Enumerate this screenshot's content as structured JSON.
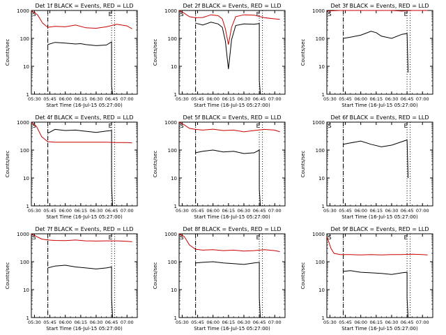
{
  "colors": {
    "events": "#000000",
    "lld": "#cc0000",
    "axes": "#000000",
    "background": "#ffffff"
  },
  "x_ticks": [
    "05:30",
    "05:45",
    "06:00",
    "06:15",
    "06:30",
    "06:45",
    "07:00"
  ],
  "x_ticks_alt": [
    "05:30",
    "05:45",
    "06:00",
    "06:15",
    "06:30",
    "06:45",
    "07:00"
  ],
  "y_ticks": [
    "1",
    "10",
    "100",
    "1000"
  ],
  "marker_s": "S",
  "marker_e": "E",
  "chart_data": [
    {
      "id": "det1f",
      "type": "line",
      "title": "Det 1f BLACK = Events, RED = LLD",
      "xlabel": "",
      "ylabel": "Counts/sec",
      "ylim": [
        1,
        1000
      ],
      "xlim": [
        "05:27",
        "07:10"
      ],
      "yscale": "log",
      "legend": "none",
      "start_line": "05:43",
      "markers": {
        "S": "05:28",
        "E": "06:46"
      },
      "dotted_lines": [
        "05:43",
        "06:45",
        "06:48"
      ],
      "series": [
        {
          "name": "Events",
          "x": [
            "05:43",
            "05:50",
            "06:00",
            "06:10",
            "06:15",
            "06:20",
            "06:30",
            "06:40",
            "06:45",
            "06:45",
            "06:46"
          ],
          "values": [
            60,
            72,
            68,
            63,
            65,
            60,
            55,
            58,
            75,
            2,
            1
          ]
        },
        {
          "name": "LLD",
          "x": [
            "05:27",
            "05:33",
            "05:38",
            "05:43",
            "05:50",
            "06:00",
            "06:10",
            "06:20",
            "06:30",
            "06:40",
            "06:50",
            "07:00",
            "07:05"
          ],
          "values": [
            1000,
            700,
            350,
            250,
            270,
            260,
            300,
            240,
            230,
            260,
            320,
            280,
            220
          ]
        }
      ]
    },
    {
      "id": "det2f",
      "type": "line",
      "title": "Det 2f BLACK = Events, RED = LLD",
      "xlabel": "",
      "ylabel": "Counts/sec",
      "ylim": [
        1,
        1000
      ],
      "xlim": [
        "05:27",
        "07:10"
      ],
      "yscale": "log",
      "legend": "none",
      "start_line": "05:43",
      "markers": {
        "S": "05:28",
        "E": "06:46"
      },
      "dotted_lines": [
        "05:43",
        "06:45",
        "06:48"
      ],
      "series": [
        {
          "name": "Events",
          "x": [
            "05:43",
            "05:50",
            "05:58",
            "06:05",
            "06:09",
            "06:12",
            "06:15",
            "06:18",
            "06:22",
            "06:30",
            "06:40",
            "06:45",
            "06:45",
            "06:46"
          ],
          "values": [
            350,
            300,
            380,
            330,
            250,
            80,
            8,
            90,
            290,
            330,
            320,
            340,
            3,
            1
          ]
        },
        {
          "name": "LLD",
          "x": [
            "05:27",
            "05:32",
            "05:37",
            "05:43",
            "05:50",
            "05:58",
            "06:05",
            "06:09",
            "06:12",
            "06:15",
            "06:18",
            "06:22",
            "06:30",
            "06:40",
            "06:50",
            "07:00",
            "07:05"
          ],
          "values": [
            1000,
            800,
            600,
            550,
            560,
            700,
            650,
            500,
            220,
            60,
            250,
            600,
            700,
            680,
            550,
            500,
            480
          ]
        }
      ]
    },
    {
      "id": "det3f",
      "type": "line",
      "title": "Det 3f BLACK = Events, RED = LLD",
      "xlabel": "",
      "ylabel": "Counts/sec",
      "ylim": [
        1,
        1000
      ],
      "xlim": [
        "05:27",
        "07:10"
      ],
      "yscale": "log",
      "legend": "none",
      "start_line": "05:43",
      "markers": {
        "S": "05:28",
        "E": "06:46"
      },
      "dotted_lines": [
        "05:43",
        "06:45",
        "06:48"
      ],
      "series": [
        {
          "name": "Events",
          "x": [
            "05:43",
            "05:50",
            "06:00",
            "06:10",
            "06:15",
            "06:20",
            "06:30",
            "06:40",
            "06:45",
            "06:46"
          ],
          "values": [
            100,
            110,
            130,
            180,
            160,
            120,
            100,
            140,
            150,
            6
          ]
        },
        {
          "name": "LLD",
          "x": [
            "05:27",
            "05:40",
            "05:50",
            "06:00",
            "06:10",
            "06:20",
            "06:30",
            "06:40",
            "06:50",
            "07:00",
            "07:05"
          ],
          "values": [
            950,
            1050,
            1000,
            1050,
            1000,
            1050,
            1000,
            950,
            1100,
            1050,
            1000
          ]
        }
      ]
    },
    {
      "id": "det4f",
      "type": "line",
      "title": "Det 4f BLACK = Events, RED = LLD",
      "xlabel": "",
      "ylabel": "Counts/sec",
      "ylim": [
        1,
        1000
      ],
      "xlim": [
        "05:27",
        "07:10"
      ],
      "yscale": "log",
      "legend": "none",
      "start_line": "05:43",
      "markers": {
        "S": "05:28",
        "E": "06:46"
      },
      "dotted_lines": [
        "05:43",
        "06:45",
        "06:48"
      ],
      "series": [
        {
          "name": "Events",
          "x": [
            "05:43",
            "05:50",
            "06:00",
            "06:10",
            "06:20",
            "06:30",
            "06:40",
            "06:45",
            "06:45",
            "06:46"
          ],
          "values": [
            400,
            550,
            500,
            520,
            470,
            430,
            480,
            500,
            5,
            1
          ]
        },
        {
          "name": "LLD",
          "x": [
            "05:27",
            "05:32",
            "05:37",
            "05:43",
            "05:50",
            "06:00",
            "06:10",
            "06:20",
            "06:30",
            "06:40",
            "06:50",
            "07:00",
            "07:05"
          ],
          "values": [
            1000,
            700,
            300,
            200,
            190,
            190,
            190,
            190,
            190,
            190,
            185,
            185,
            180
          ]
        }
      ]
    },
    {
      "id": "det5f",
      "type": "line",
      "title": "Det 5f BLACK = Events, RED = LLD",
      "xlabel": "",
      "ylabel": "Counts/sec",
      "ylim": [
        1,
        1000
      ],
      "xlim": [
        "05:27",
        "07:10"
      ],
      "yscale": "log",
      "legend": "none",
      "start_line": "05:43",
      "markers": {
        "S": "05:28",
        "E": "06:46"
      },
      "dotted_lines": [
        "05:43",
        "06:45",
        "06:48"
      ],
      "series": [
        {
          "name": "Events",
          "x": [
            "05:43",
            "05:50",
            "06:00",
            "06:10",
            "06:20",
            "06:30",
            "06:40",
            "06:45",
            "06:45",
            "06:46"
          ],
          "values": [
            80,
            90,
            100,
            85,
            90,
            75,
            80,
            100,
            4,
            1
          ]
        },
        {
          "name": "LLD",
          "x": [
            "05:27",
            "05:32",
            "05:37",
            "05:43",
            "05:50",
            "06:00",
            "06:10",
            "06:20",
            "06:30",
            "06:40",
            "06:50",
            "07:00",
            "07:05"
          ],
          "values": [
            1000,
            800,
            600,
            550,
            520,
            560,
            500,
            520,
            450,
            500,
            550,
            520,
            450
          ]
        }
      ]
    },
    {
      "id": "det6f",
      "type": "line",
      "title": "Det 6f BLACK = Events, RED = LLD",
      "xlabel": "",
      "ylabel": "Counts/sec",
      "ylim": [
        1,
        1000
      ],
      "xlim": [
        "05:27",
        "07:10"
      ],
      "yscale": "log",
      "legend": "none",
      "start_line": "05:43",
      "markers": {
        "S": "05:28",
        "E": "06:46"
      },
      "dotted_lines": [
        "05:43",
        "06:45",
        "06:48"
      ],
      "series": [
        {
          "name": "Events",
          "x": [
            "05:43",
            "05:50",
            "06:00",
            "06:10",
            "06:20",
            "06:30",
            "06:40",
            "06:45",
            "06:46"
          ],
          "values": [
            160,
            180,
            210,
            160,
            130,
            150,
            200,
            230,
            10
          ]
        },
        {
          "name": "LLD",
          "x": [],
          "values": []
        }
      ]
    },
    {
      "id": "det7f",
      "type": "line",
      "title": "Det 7f BLACK = Events, RED = LLD",
      "xlabel": "",
      "ylabel": "Counts/sec",
      "ylim": [
        1,
        1000
      ],
      "xlim": [
        "05:27",
        "07:10"
      ],
      "yscale": "log",
      "legend": "none",
      "start_line": "05:43",
      "markers": {
        "S": "05:28",
        "E": "06:46"
      },
      "dotted_lines": [
        "05:43",
        "06:45",
        "06:48"
      ],
      "series": [
        {
          "name": "Events",
          "x": [
            "05:43",
            "05:50",
            "06:00",
            "06:10",
            "06:20",
            "06:30",
            "06:40",
            "06:45",
            "06:45",
            "06:46"
          ],
          "values": [
            60,
            70,
            75,
            65,
            60,
            55,
            60,
            65,
            5,
            1
          ]
        },
        {
          "name": "LLD",
          "x": [
            "05:27",
            "05:32",
            "05:37",
            "05:43",
            "05:50",
            "06:00",
            "06:10",
            "06:20",
            "06:30",
            "06:40",
            "06:50",
            "07:00",
            "07:05"
          ],
          "values": [
            1000,
            800,
            650,
            600,
            580,
            570,
            600,
            560,
            550,
            560,
            560,
            540,
            520
          ]
        }
      ]
    },
    {
      "id": "det8f",
      "type": "line",
      "title": "Det 8f BLACK = Events, RED = LLD",
      "xlabel": "",
      "ylabel": "Counts/sec",
      "ylim": [
        1,
        1000
      ],
      "xlim": [
        "05:27",
        "07:10"
      ],
      "yscale": "log",
      "legend": "none",
      "start_line": "05:43",
      "markers": {
        "S": "05:28",
        "E": "06:46"
      },
      "dotted_lines": [
        "05:43",
        "06:45",
        "06:48"
      ],
      "series": [
        {
          "name": "Events",
          "x": [
            "05:43",
            "05:50",
            "06:00",
            "06:10",
            "06:20",
            "06:30",
            "06:40",
            "06:45",
            "06:45",
            "06:46"
          ],
          "values": [
            90,
            95,
            100,
            90,
            85,
            80,
            90,
            95,
            5,
            1
          ]
        },
        {
          "name": "LLD",
          "x": [
            "05:27",
            "05:32",
            "05:37",
            "05:43",
            "05:50",
            "06:00",
            "06:10",
            "06:20",
            "06:30",
            "06:40",
            "06:50",
            "07:00",
            "07:05"
          ],
          "values": [
            1000,
            800,
            400,
            280,
            260,
            270,
            250,
            260,
            240,
            250,
            270,
            250,
            230
          ]
        }
      ]
    },
    {
      "id": "det9f",
      "type": "line",
      "title": "Det 9f BLACK = Events, RED = LLD",
      "xlabel": "",
      "ylabel": "Counts/sec",
      "ylim": [
        1,
        1000
      ],
      "xlim": [
        "05:27",
        "07:10"
      ],
      "yscale": "log",
      "legend": "none",
      "start_line": "05:43",
      "markers": {
        "S": "05:28",
        "E": "06:46"
      },
      "dotted_lines": [
        "05:43",
        "06:45",
        "06:48"
      ],
      "series": [
        {
          "name": "Events",
          "x": [
            "05:43",
            "05:50",
            "06:00",
            "06:10",
            "06:20",
            "06:30",
            "06:40",
            "06:45",
            "06:45",
            "06:46"
          ],
          "values": [
            45,
            48,
            42,
            40,
            38,
            35,
            40,
            42,
            5,
            1
          ]
        },
        {
          "name": "LLD",
          "x": [
            "05:27",
            "05:29",
            "05:31",
            "05:34",
            "05:40",
            "05:50",
            "06:00",
            "06:10",
            "06:20",
            "06:30",
            "06:40",
            "06:50",
            "07:00",
            "07:05"
          ],
          "values": [
            800,
            500,
            300,
            200,
            180,
            180,
            175,
            180,
            175,
            180,
            180,
            185,
            180,
            175
          ]
        }
      ]
    }
  ],
  "start_time_label": "Start Time (16-Jul-15 05:27:00)"
}
